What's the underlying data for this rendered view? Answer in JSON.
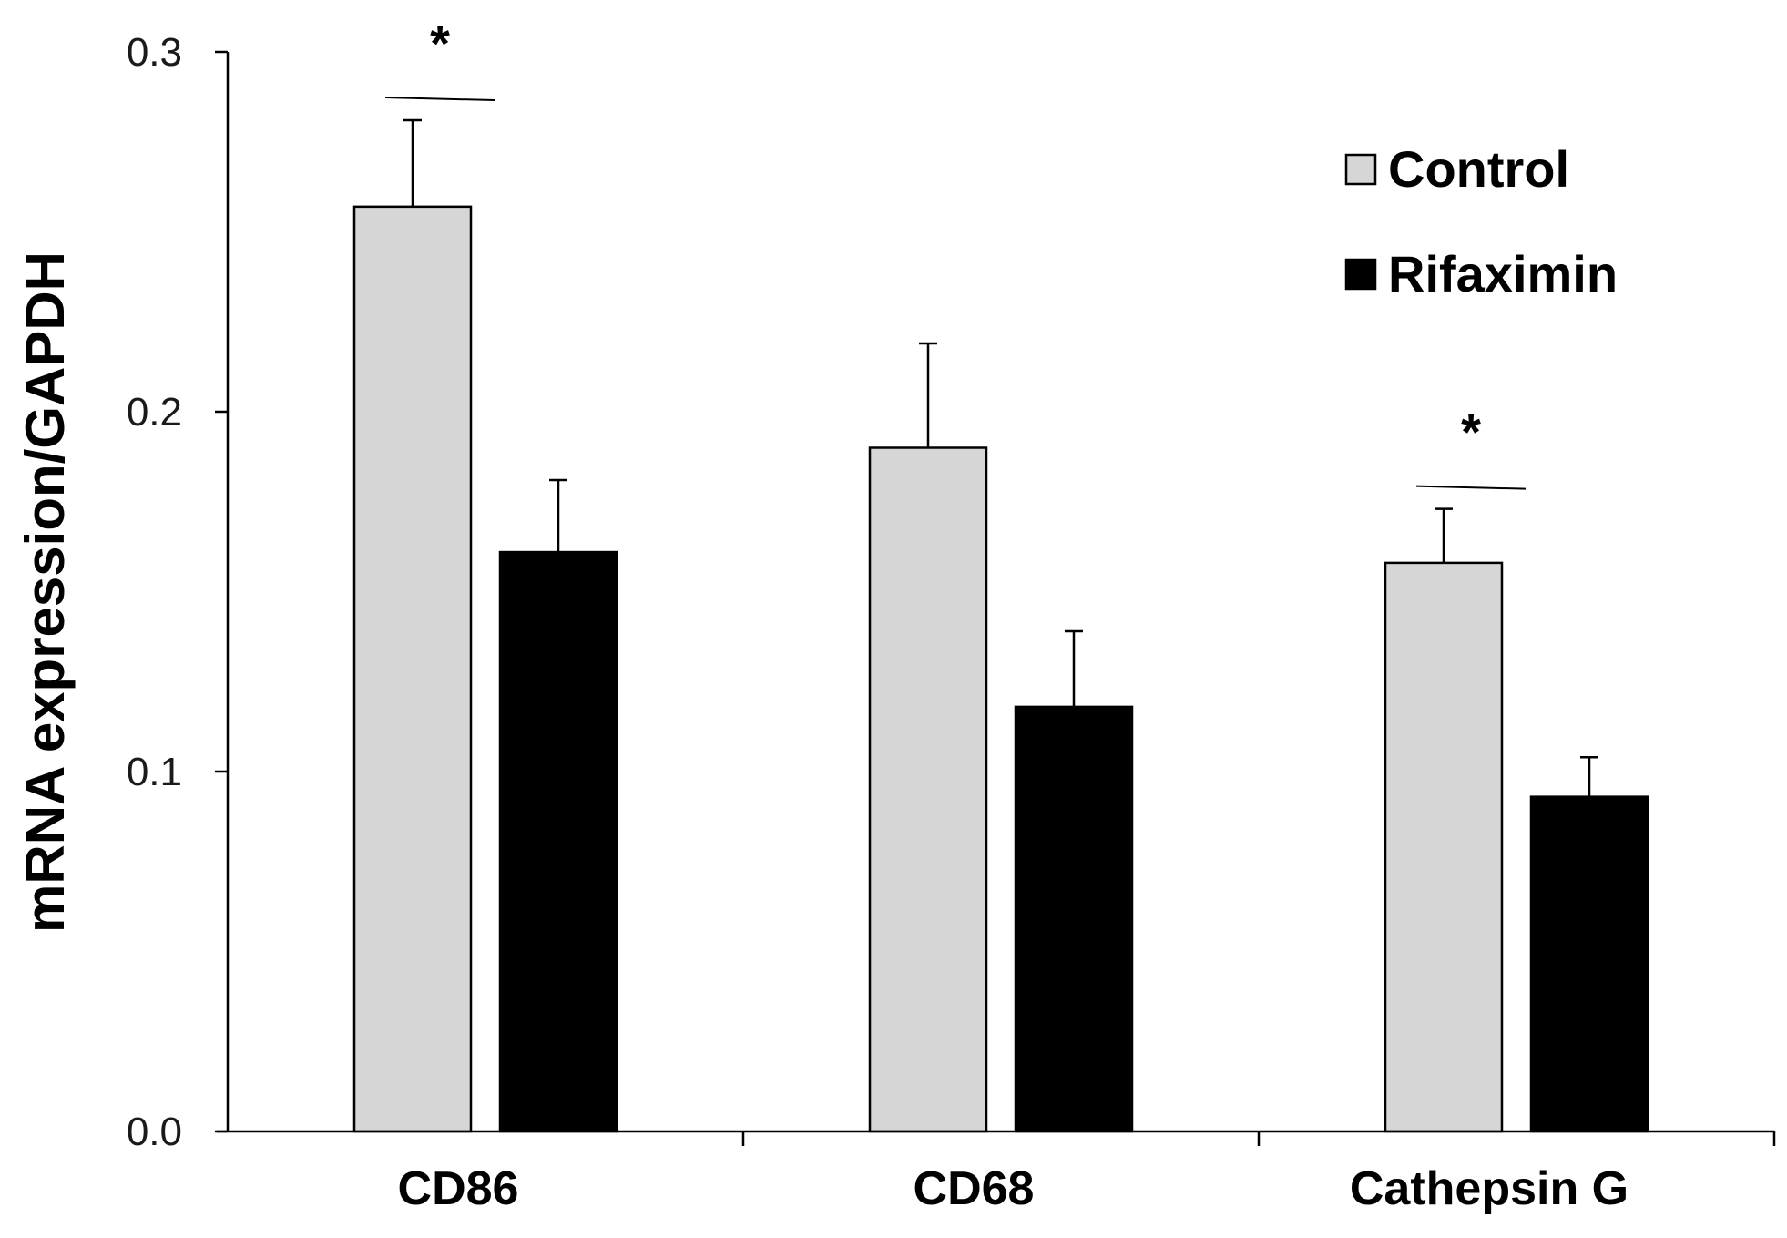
{
  "chart_data": {
    "type": "bar",
    "title": "",
    "xlabel": "",
    "ylabel": "mRNA expression/GAPDH",
    "categories": [
      "CD86",
      "CD68",
      "Cathepsin G"
    ],
    "ylim": [
      0,
      0.3
    ],
    "yticks": [
      "0.0",
      "0.1",
      "0.2",
      "0.3"
    ],
    "grid": false,
    "legend_position": "top-right",
    "series": [
      {
        "name": "Control",
        "color": "#d6d6d6",
        "values": [
          0.257,
          0.19,
          0.158
        ],
        "errors": [
          0.024,
          0.029,
          0.015
        ]
      },
      {
        "name": "Rifaximin",
        "color": "#000000",
        "values": [
          0.161,
          0.118,
          0.093
        ],
        "errors": [
          0.02,
          0.021,
          0.011
        ]
      }
    ],
    "significance": [
      {
        "category": "CD86",
        "label": "*"
      },
      {
        "category": "Cathepsin G",
        "label": "*"
      }
    ]
  }
}
